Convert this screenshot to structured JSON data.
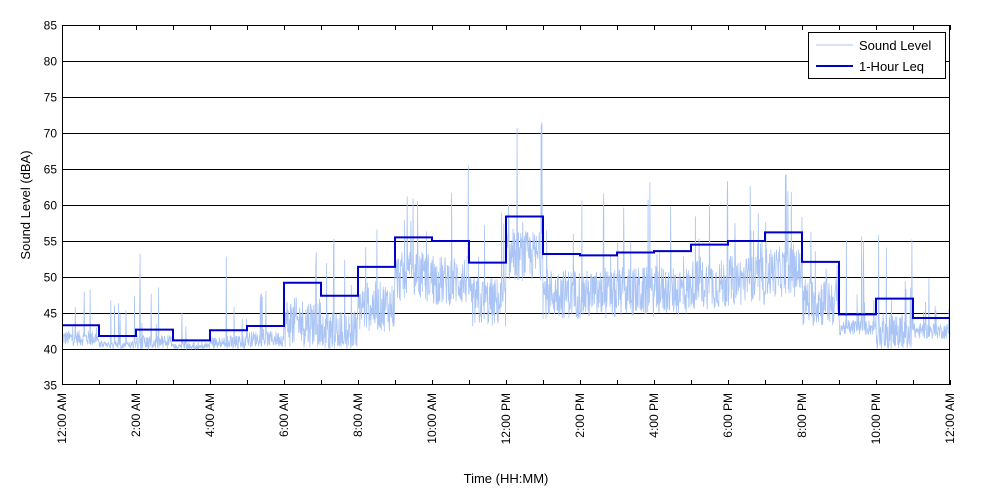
{
  "chart_data": {
    "type": "line",
    "xlabel": "Time (HH:MM)",
    "ylabel": "Sound Level (dBA)",
    "xlim": [
      0,
      24
    ],
    "ylim": [
      35,
      85
    ],
    "grid": "horizontal",
    "legend_position": "top-right",
    "x_tick_values": [
      0,
      2,
      4,
      6,
      8,
      10,
      12,
      14,
      16,
      18,
      20,
      22,
      24
    ],
    "x_tick_labels": [
      "12:00 AM",
      "2:00 AM",
      "4:00 AM",
      "6:00 AM",
      "8:00 AM",
      "10:00 AM",
      "12:00 PM",
      "2:00 PM",
      "4:00 PM",
      "6:00 PM",
      "8:00 PM",
      "10:00 PM",
      "12:00 AM"
    ],
    "y_ticks": [
      35,
      40,
      45,
      50,
      55,
      60,
      65,
      70,
      75,
      80,
      85
    ],
    "series": [
      {
        "name": "Sound Level",
        "color": "#a9c4f5",
        "kind": "noisy-trace",
        "note_hourly_peaks_dBA": [
          49,
          48,
          54,
          52,
          53,
          51,
          56,
          56,
          58,
          62,
          66,
          66,
          72,
          63,
          62,
          61,
          63,
          64,
          63,
          65,
          60,
          56,
          56,
          50
        ]
      },
      {
        "name": "1-Hour Leq",
        "color": "#0000cc",
        "kind": "step",
        "hours": [
          0,
          1,
          2,
          3,
          4,
          5,
          6,
          7,
          8,
          9,
          10,
          11,
          12,
          13,
          14,
          15,
          16,
          17,
          18,
          19,
          20,
          21,
          22,
          23
        ],
        "values": [
          43.3,
          41.8,
          42.7,
          41.2,
          42.6,
          43.2,
          49.2,
          47.4,
          51.4,
          55.5,
          55.0,
          52.0,
          58.4,
          53.2,
          53.0,
          53.4,
          53.6,
          54.5,
          55.0,
          56.2,
          52.1,
          44.8,
          47.0,
          44.3
        ]
      }
    ]
  }
}
